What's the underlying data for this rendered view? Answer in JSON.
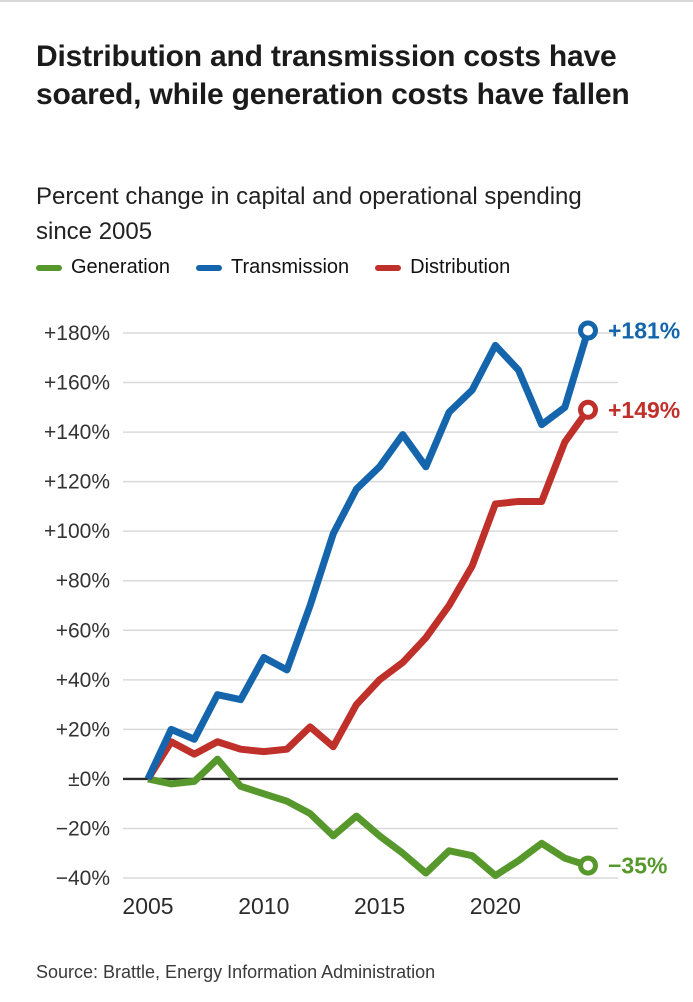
{
  "header": {
    "title": "Distribution and transmission costs have soared, while generation costs have fallen",
    "subtitle": "Percent change in capital and operational spending since 2005"
  },
  "legend": {
    "items": [
      {
        "label": "Generation",
        "color": "#57982d"
      },
      {
        "label": "Transmission",
        "color": "#1565ad"
      },
      {
        "label": "Distribution",
        "color": "#c0302a"
      }
    ]
  },
  "chart_data": {
    "type": "line",
    "title": "Percent change in capital and operational spending since 2005",
    "x": [
      2005,
      2006,
      2007,
      2008,
      2009,
      2010,
      2011,
      2012,
      2013,
      2014,
      2015,
      2016,
      2017,
      2018,
      2019,
      2020,
      2021,
      2022,
      2023,
      2024
    ],
    "series": [
      {
        "name": "Generation",
        "color": "#57982d",
        "end_label": "−35%",
        "values": [
          0,
          -2,
          -1,
          8,
          -3,
          -6,
          -9,
          -14,
          -23,
          -15,
          -23,
          -30,
          -38,
          -29,
          -31,
          -39,
          -33,
          -26,
          -32,
          -35
        ]
      },
      {
        "name": "Transmission",
        "color": "#1565ad",
        "end_label": "+181%",
        "values": [
          0,
          20,
          16,
          34,
          32,
          49,
          44,
          70,
          99,
          117,
          126,
          139,
          126,
          148,
          157,
          175,
          165,
          143,
          150,
          181
        ]
      },
      {
        "name": "Distribution",
        "color": "#c0302a",
        "end_label": "+149%",
        "values": [
          0,
          15,
          10,
          15,
          12,
          11,
          12,
          21,
          13,
          30,
          40,
          47,
          57,
          70,
          86,
          111,
          112,
          112,
          136,
          149
        ]
      }
    ],
    "ylim": [
      -40,
      180
    ],
    "yticks": [
      {
        "value": 180,
        "label": "+180%"
      },
      {
        "value": 160,
        "label": "+160%"
      },
      {
        "value": 140,
        "label": "+140%"
      },
      {
        "value": 120,
        "label": "+120%"
      },
      {
        "value": 100,
        "label": "+100%"
      },
      {
        "value": 80,
        "label": "+80%"
      },
      {
        "value": 60,
        "label": "+60%"
      },
      {
        "value": 40,
        "label": "+40%"
      },
      {
        "value": 20,
        "label": "+20%"
      },
      {
        "value": 0,
        "label": "±0%"
      },
      {
        "value": -20,
        "label": "−20%"
      },
      {
        "value": -40,
        "label": "−40%"
      }
    ],
    "xticks": [
      {
        "value": 2005,
        "label": "2005"
      },
      {
        "value": 2010,
        "label": "2010"
      },
      {
        "value": 2015,
        "label": "2015"
      },
      {
        "value": 2020,
        "label": "2020"
      }
    ],
    "grid": true,
    "zero_line": true,
    "legend_position": "top",
    "colors": {
      "grid": "#d9d9d9",
      "zero_line": "#2b2b2b",
      "tick_text": "#333333"
    }
  },
  "source": {
    "text": "Source: Brattle, Energy Information Administration"
  }
}
